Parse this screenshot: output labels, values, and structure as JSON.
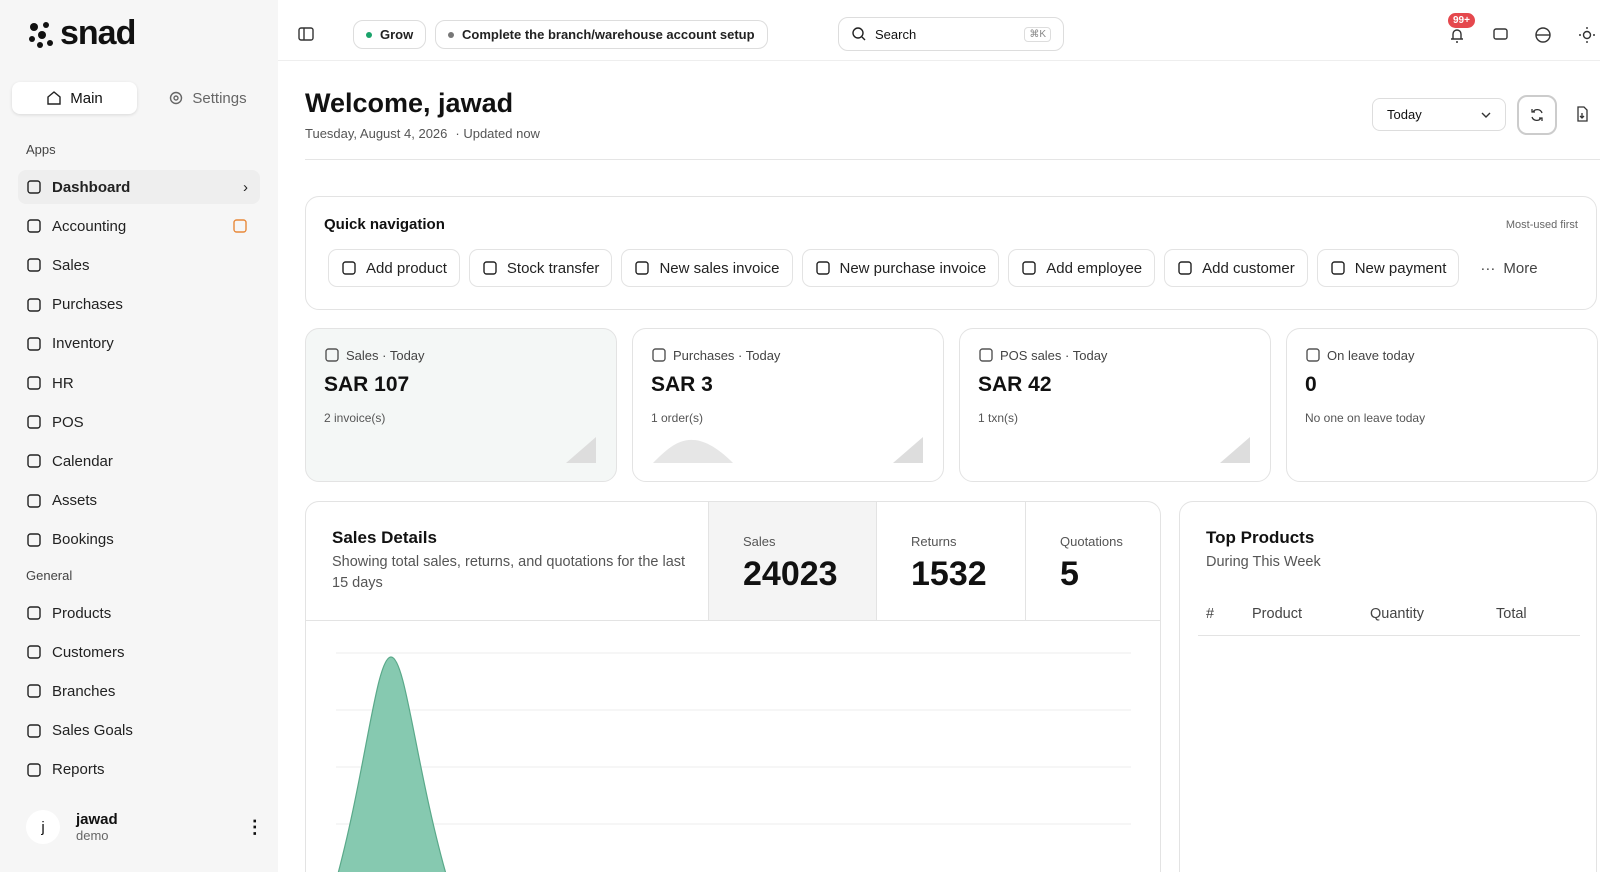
{
  "sidebar": {
    "logo": "snad",
    "tabs": [
      "Main",
      "Settings"
    ],
    "sections": [
      {
        "title": "Apps",
        "items": [
          "Dashboard",
          "Accounting",
          "Sales",
          "Purchases",
          "Inventory",
          "HR",
          "POS",
          "Calendar",
          "Assets",
          "Bookings"
        ]
      },
      {
        "title": "General",
        "items": [
          "Products",
          "Customers",
          "Branches",
          "Sales Goals",
          "Reports"
        ]
      }
    ],
    "user": {
      "initial": "j",
      "name": "jawad",
      "role": "demo"
    }
  },
  "topbar": {
    "badge": "Grow",
    "setup": "Complete the branch/warehouse account setup",
    "search": "Search",
    "shortcut": "⌘K",
    "notifications": "99+"
  },
  "header": {
    "title": "Welcome, jawad",
    "date": "Tuesday, August 4, 2026",
    "updated": "· Updated now",
    "period": "Today"
  },
  "quick_nav": {
    "title": "Quick navigation",
    "hint": "Most-used first",
    "actions": [
      "Add product",
      "Stock transfer",
      "New sales invoice",
      "New purchase invoice",
      "Add employee",
      "Add customer",
      "New payment"
    ],
    "more": "More"
  },
  "kpis": [
    {
      "label": "Sales · Today",
      "value": "SAR 107",
      "note": "2 invoice(s)"
    },
    {
      "label": "Purchases · Today",
      "value": "SAR 3",
      "note": "1 order(s)"
    },
    {
      "label": "POS sales · Today",
      "value": "SAR 42",
      "note": "1 txn(s)"
    },
    {
      "label": "On leave today",
      "value": "0",
      "note": "No one on leave today"
    }
  ],
  "sales_details": {
    "title": "Sales Details",
    "subtitle": "Showing total sales, returns, and quotations for the last 15 days",
    "stats": [
      {
        "label": "Sales",
        "value": 24023
      },
      {
        "label": "Returns",
        "value": 1532
      },
      {
        "label": "Quotations",
        "value": 5
      }
    ]
  },
  "top_products": {
    "title": "Top Products",
    "subtitle": "During This Week",
    "columns": [
      "#",
      "Product",
      "Quantity",
      "Total"
    ]
  }
}
